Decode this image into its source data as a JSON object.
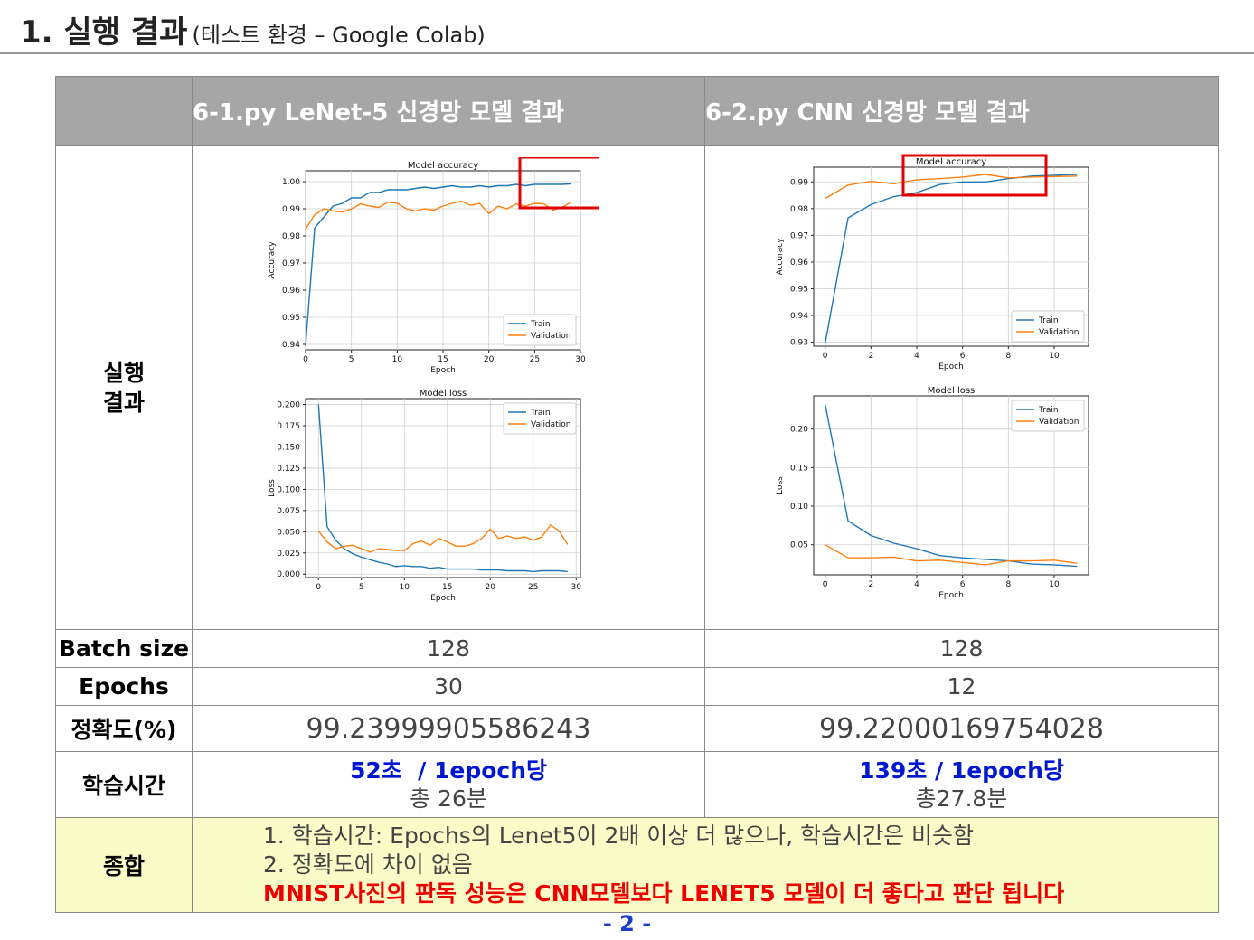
{
  "header": {
    "number_title": "1. 실행 결과",
    "env": "(테스트 환경 – Google Colab)"
  },
  "table": {
    "col_headers": [
      "",
      "6-1.py LeNet-5 신경망 모델 결과",
      "6-2.py CNN 신경망 모델 결과"
    ],
    "row_labels": {
      "result_line1": "실행",
      "result_line2": "결과",
      "batch": "Batch size",
      "epochs": "Epochs",
      "accuracy": "정확도(%)",
      "time": "학습시간",
      "summary": "종합"
    },
    "lenet": {
      "batch": "128",
      "epochs": "30",
      "accuracy": "99.23999905586243",
      "time_per_epoch": "52초  / 1epoch당",
      "time_total": "총 26분"
    },
    "cnn": {
      "batch": "128",
      "epochs": "12",
      "accuracy": "99.22000169754028",
      "time_per_epoch": "139초 / 1epoch당",
      "time_total": "총27.8분"
    },
    "summary": {
      "line1": "1. 학습시간: Epochs의 Lenet5이 2배 이상 더 많으나, 학습시간은 비슷함",
      "line2": "2. 정확도에 차이 없음",
      "conclusion": "MNIST사진의 판독 성능은 CNN모델보다 LENET5 모델이 더 좋다고 판단 됩니다"
    }
  },
  "page_number": "- 2 -",
  "chart_data": [
    {
      "type": "line",
      "title": "Model accuracy",
      "xlabel": "Epoch",
      "ylabel": "Accuracy",
      "legend": [
        "Train",
        "Validation"
      ],
      "legend_position": "lower-right",
      "xlim": [
        0,
        30
      ],
      "ylim": [
        0.938,
        1.004
      ],
      "xticks": [
        0,
        5,
        10,
        15,
        20,
        25,
        30
      ],
      "yticks": [
        0.94,
        0.95,
        0.96,
        0.97,
        0.98,
        0.99,
        1.0
      ],
      "ytick_labels": [
        "0.94",
        "0.95",
        "0.96",
        "0.97",
        "0.98",
        "0.99",
        "1.00"
      ],
      "series": [
        {
          "name": "Train",
          "color": "#1f77b4",
          "x": [
            0,
            1,
            2,
            3,
            4,
            5,
            6,
            7,
            8,
            9,
            10,
            11,
            12,
            13,
            14,
            15,
            16,
            17,
            18,
            19,
            20,
            21,
            22,
            23,
            24,
            25,
            26,
            27,
            28,
            29
          ],
          "values": [
            0.9395,
            0.983,
            0.987,
            0.991,
            0.992,
            0.994,
            0.994,
            0.996,
            0.996,
            0.997,
            0.997,
            0.997,
            0.9975,
            0.998,
            0.9975,
            0.998,
            0.9985,
            0.998,
            0.998,
            0.9985,
            0.998,
            0.9985,
            0.9985,
            0.999,
            0.9985,
            0.999,
            0.999,
            0.999,
            0.999,
            0.9992
          ]
        },
        {
          "name": "Validation",
          "color": "#ff7f0e",
          "x": [
            0,
            1,
            2,
            3,
            4,
            5,
            6,
            7,
            8,
            9,
            10,
            11,
            12,
            13,
            14,
            15,
            16,
            17,
            18,
            19,
            20,
            21,
            22,
            23,
            24,
            25,
            26,
            27,
            28,
            29
          ],
          "values": [
            0.9825,
            0.9878,
            0.99,
            0.9892,
            0.9888,
            0.99,
            0.9918,
            0.991,
            0.9905,
            0.9925,
            0.992,
            0.99,
            0.9892,
            0.99,
            0.9895,
            0.991,
            0.992,
            0.9928,
            0.9913,
            0.992,
            0.9882,
            0.991,
            0.99,
            0.9918,
            0.991,
            0.992,
            0.9918,
            0.9895,
            0.9905,
            0.9925
          ]
        }
      ]
    },
    {
      "type": "line",
      "title": "Model loss",
      "xlabel": "Epoch",
      "ylabel": "Loss",
      "legend": [
        "Train",
        "Validation"
      ],
      "legend_position": "top-right",
      "xlim": [
        -1.5,
        30.5
      ],
      "ylim": [
        -0.004,
        0.207
      ],
      "xticks": [
        0,
        5,
        10,
        15,
        20,
        25,
        30
      ],
      "yticks": [
        0,
        0.025,
        0.05,
        0.075,
        0.1,
        0.125,
        0.15,
        0.175,
        0.2
      ],
      "ytick_labels": [
        "0.000",
        "0.025",
        "0.050",
        "0.075",
        "0.100",
        "0.125",
        "0.150",
        "0.175",
        "0.200"
      ],
      "series": [
        {
          "name": "Train",
          "color": "#1f77b4",
          "x": [
            0,
            1,
            2,
            3,
            4,
            5,
            6,
            7,
            8,
            9,
            10,
            11,
            12,
            13,
            14,
            15,
            16,
            17,
            18,
            19,
            20,
            21,
            22,
            23,
            24,
            25,
            26,
            27,
            28,
            29
          ],
          "values": [
            0.2,
            0.056,
            0.04,
            0.03,
            0.024,
            0.02,
            0.017,
            0.014,
            0.012,
            0.009,
            0.01,
            0.009,
            0.009,
            0.007,
            0.008,
            0.006,
            0.006,
            0.006,
            0.006,
            0.005,
            0.005,
            0.005,
            0.004,
            0.004,
            0.004,
            0.003,
            0.004,
            0.004,
            0.004,
            0.003
          ]
        },
        {
          "name": "Validation",
          "color": "#ff7f0e",
          "x": [
            0,
            1,
            2,
            3,
            4,
            5,
            6,
            7,
            8,
            9,
            10,
            11,
            12,
            13,
            14,
            15,
            16,
            17,
            18,
            19,
            20,
            21,
            22,
            23,
            24,
            25,
            26,
            27,
            28,
            29
          ],
          "values": [
            0.051,
            0.038,
            0.03,
            0.033,
            0.034,
            0.03,
            0.026,
            0.03,
            0.029,
            0.028,
            0.028,
            0.036,
            0.039,
            0.034,
            0.042,
            0.038,
            0.033,
            0.033,
            0.036,
            0.042,
            0.053,
            0.042,
            0.045,
            0.042,
            0.044,
            0.04,
            0.044,
            0.058,
            0.051,
            0.035
          ]
        }
      ]
    },
    {
      "type": "line",
      "title": "Model accuracy",
      "xlabel": "Epoch",
      "ylabel": "Accuracy",
      "legend": [
        "Train",
        "Validation"
      ],
      "legend_position": "lower-right",
      "xlim": [
        -0.5,
        11.5
      ],
      "ylim": [
        0.9285,
        0.9955
      ],
      "xticks": [
        0,
        2,
        4,
        6,
        8,
        10
      ],
      "yticks": [
        0.93,
        0.94,
        0.95,
        0.96,
        0.97,
        0.98,
        0.99
      ],
      "ytick_labels": [
        "0.93",
        "0.94",
        "0.95",
        "0.96",
        "0.97",
        "0.98",
        "0.99"
      ],
      "series": [
        {
          "name": "Train",
          "color": "#1f77b4",
          "x": [
            0,
            1,
            2,
            3,
            4,
            5,
            6,
            7,
            8,
            9,
            10,
            11
          ],
          "values": [
            0.9295,
            0.9765,
            0.9815,
            0.9845,
            0.986,
            0.989,
            0.99,
            0.99,
            0.9912,
            0.9922,
            0.9925,
            0.9928
          ]
        },
        {
          "name": "Validation",
          "color": "#ff7f0e",
          "x": [
            0,
            1,
            2,
            3,
            4,
            5,
            6,
            7,
            8,
            9,
            10,
            11
          ],
          "values": [
            0.9838,
            0.9888,
            0.9902,
            0.9893,
            0.9908,
            0.9912,
            0.9918,
            0.9928,
            0.9915,
            0.9918,
            0.992,
            0.9922
          ]
        }
      ]
    },
    {
      "type": "line",
      "title": "Model loss",
      "xlabel": "Epoch",
      "ylabel": "Loss",
      "legend": [
        "Train",
        "Validation"
      ],
      "legend_position": "top-right",
      "xlim": [
        -0.5,
        11.5
      ],
      "ylim": [
        0.011,
        0.243
      ],
      "xticks": [
        0,
        2,
        4,
        6,
        8,
        10
      ],
      "yticks": [
        0.05,
        0.1,
        0.15,
        0.2
      ],
      "ytick_labels": [
        "0.05",
        "0.10",
        "0.15",
        "0.20"
      ],
      "series": [
        {
          "name": "Train",
          "color": "#1f77b4",
          "x": [
            0,
            1,
            2,
            3,
            4,
            5,
            6,
            7,
            8,
            9,
            10,
            11
          ],
          "values": [
            0.232,
            0.081,
            0.062,
            0.052,
            0.045,
            0.036,
            0.033,
            0.031,
            0.029,
            0.025,
            0.024,
            0.022
          ]
        },
        {
          "name": "Validation",
          "color": "#ff7f0e",
          "x": [
            0,
            1,
            2,
            3,
            4,
            5,
            6,
            7,
            8,
            9,
            10,
            11
          ],
          "values": [
            0.05,
            0.033,
            0.033,
            0.034,
            0.029,
            0.03,
            0.027,
            0.024,
            0.029,
            0.029,
            0.03,
            0.026
          ]
        }
      ]
    }
  ]
}
